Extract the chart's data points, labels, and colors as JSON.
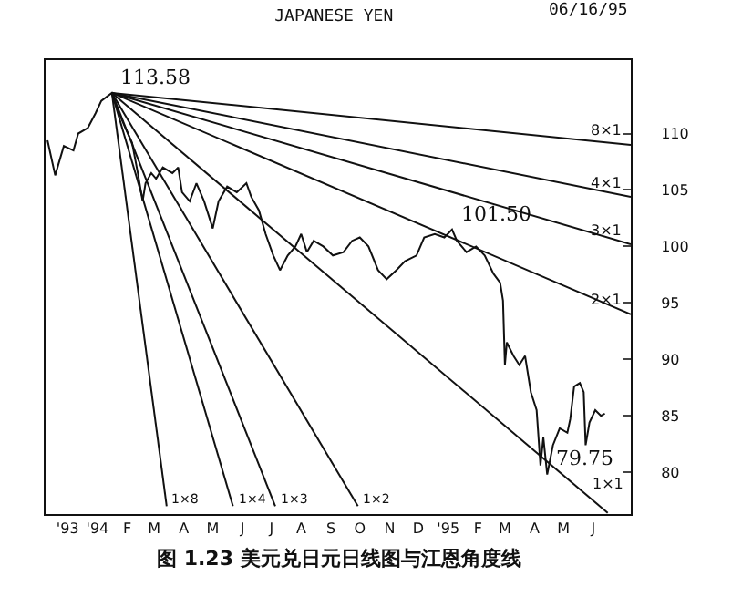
{
  "chart_data": {
    "type": "line",
    "title": "JAPANESE YEN",
    "xlim": [
      "1993-11-08",
      "1995-07-10"
    ],
    "ylim": [
      76.3,
      116.5
    ],
    "xticks": [
      {
        "value": "1993-12-01",
        "label": "'93"
      },
      {
        "value": "1994-01-01",
        "label": "'94"
      },
      {
        "value": "1994-02-01",
        "label": "F"
      },
      {
        "value": "1994-03-01",
        "label": "M"
      },
      {
        "value": "1994-04-01",
        "label": "A"
      },
      {
        "value": "1994-05-01",
        "label": "M"
      },
      {
        "value": "1994-06-01",
        "label": "J"
      },
      {
        "value": "1994-07-01",
        "label": "J"
      },
      {
        "value": "1994-08-01",
        "label": "A"
      },
      {
        "value": "1994-09-01",
        "label": "S"
      },
      {
        "value": "1994-10-01",
        "label": "O"
      },
      {
        "value": "1994-11-01",
        "label": "N"
      },
      {
        "value": "1994-12-01",
        "label": "D"
      },
      {
        "value": "1995-01-01",
        "label": "'95"
      },
      {
        "value": "1995-02-01",
        "label": "F"
      },
      {
        "value": "1995-03-01",
        "label": "M"
      },
      {
        "value": "1995-04-01",
        "label": "A"
      },
      {
        "value": "1995-05-01",
        "label": "M"
      },
      {
        "value": "1995-06-01",
        "label": "J"
      }
    ],
    "yticks": [
      80,
      85,
      90,
      95,
      100,
      105,
      110
    ],
    "legend": false,
    "series": [
      {
        "color": "#111111",
        "x": [
          "1993-11-10",
          "1993-11-18",
          "1993-11-27",
          "1993-12-07",
          "1993-12-12",
          "1993-12-22",
          "1993-12-30",
          "1994-01-05",
          "1994-01-16",
          "1994-01-22",
          "1994-01-30",
          "1994-02-06",
          "1994-02-12",
          "1994-02-17",
          "1994-02-20",
          "1994-02-26",
          "1994-03-03",
          "1994-03-10",
          "1994-03-20",
          "1994-03-26",
          "1994-03-30",
          "1994-04-07",
          "1994-04-14",
          "1994-04-22",
          "1994-05-01",
          "1994-05-07",
          "1994-05-16",
          "1994-05-26",
          "1994-06-05",
          "1994-06-10",
          "1994-06-18",
          "1994-06-25",
          "1994-07-03",
          "1994-07-10",
          "1994-07-18",
          "1994-07-26",
          "1994-08-01",
          "1994-08-07",
          "1994-08-14",
          "1994-08-24",
          "1994-09-03",
          "1994-09-14",
          "1994-09-23",
          "1994-10-01",
          "1994-10-10",
          "1994-10-20",
          "1994-10-29",
          "1994-11-08",
          "1994-11-17",
          "1994-11-29",
          "1994-12-07",
          "1994-12-18",
          "1994-12-28",
          "1995-01-05",
          "1995-01-10",
          "1995-01-20",
          "1995-01-30",
          "1995-02-08",
          "1995-02-17",
          "1995-02-24",
          "1995-02-27",
          "1995-03-01",
          "1995-03-03",
          "1995-03-10",
          "1995-03-16",
          "1995-03-22",
          "1995-03-28",
          "1995-04-03",
          "1995-04-07",
          "1995-04-10",
          "1995-04-14",
          "1995-04-20",
          "1995-04-27",
          "1995-05-05",
          "1995-05-08",
          "1995-05-12",
          "1995-05-18",
          "1995-05-22",
          "1995-05-24",
          "1995-05-28",
          "1995-06-03",
          "1995-06-09",
          "1995-06-13"
        ],
        "values": [
          109.4,
          106.3,
          108.9,
          108.5,
          110.0,
          110.5,
          111.8,
          112.9,
          113.6,
          112.1,
          110.5,
          109.2,
          106.5,
          104.0,
          105.6,
          106.5,
          106.0,
          107.0,
          106.5,
          107.0,
          104.8,
          104.0,
          105.6,
          104.0,
          101.6,
          104.0,
          105.3,
          104.8,
          105.6,
          104.4,
          103.2,
          101.1,
          99.2,
          97.9,
          99.2,
          100.0,
          101.1,
          99.5,
          100.5,
          100.0,
          99.2,
          99.5,
          100.5,
          100.8,
          100.0,
          97.9,
          97.1,
          97.9,
          98.7,
          99.2,
          100.8,
          101.1,
          100.8,
          101.5,
          100.5,
          99.5,
          100.0,
          99.2,
          97.6,
          96.8,
          95.2,
          89.5,
          91.5,
          90.3,
          89.5,
          90.3,
          87.1,
          85.5,
          80.6,
          83.1,
          79.8,
          82.4,
          83.9,
          83.5,
          84.7,
          87.6,
          87.9,
          87.1,
          82.4,
          84.4,
          85.5,
          85.0,
          85.2
        ]
      },
      {
        "name": "8×1",
        "color": "#111111",
        "x": [
          "1994-01-16",
          "1995-07-10"
        ],
        "values": [
          113.6,
          109.0
        ]
      },
      {
        "name": "4×1",
        "color": "#111111",
        "x": [
          "1994-01-16",
          "1995-07-10"
        ],
        "values": [
          113.6,
          104.4
        ]
      },
      {
        "name": "3×1",
        "color": "#111111",
        "x": [
          "1994-01-16",
          "1995-07-10"
        ],
        "values": [
          113.6,
          100.2
        ]
      },
      {
        "name": "2×1",
        "color": "#111111",
        "x": [
          "1994-01-16",
          "1995-07-10"
        ],
        "values": [
          113.6,
          94.0
        ]
      },
      {
        "name": "1×1",
        "color": "#111111",
        "x": [
          "1994-01-16",
          "1995-06-16"
        ],
        "values": [
          113.6,
          76.4
        ]
      },
      {
        "name": "1×2",
        "color": "#111111",
        "x": [
          "1994-01-16",
          "1994-09-29"
        ],
        "values": [
          113.6,
          77.0
        ]
      },
      {
        "name": "1×3",
        "color": "#111111",
        "x": [
          "1994-01-16",
          "1994-07-05"
        ],
        "values": [
          113.6,
          77.0
        ]
      },
      {
        "name": "1×4",
        "color": "#111111",
        "x": [
          "1994-01-16",
          "1994-05-22"
        ],
        "values": [
          113.6,
          77.0
        ]
      },
      {
        "name": "1×8",
        "color": "#111111",
        "x": [
          "1994-01-16",
          "1994-03-14"
        ],
        "values": [
          113.6,
          77.0
        ]
      }
    ],
    "annotations": [
      {
        "text": "113.58",
        "x": "1994-01-16",
        "y": 113.6
      },
      {
        "text": "101.50",
        "x": "1995-01-05",
        "y": 101.5
      },
      {
        "text": "79.75",
        "x": "1995-04-14",
        "y": 79.8
      },
      "06/16/95",
      "图 1.23 美元兑日元日线图与江恩角度线"
    ]
  }
}
